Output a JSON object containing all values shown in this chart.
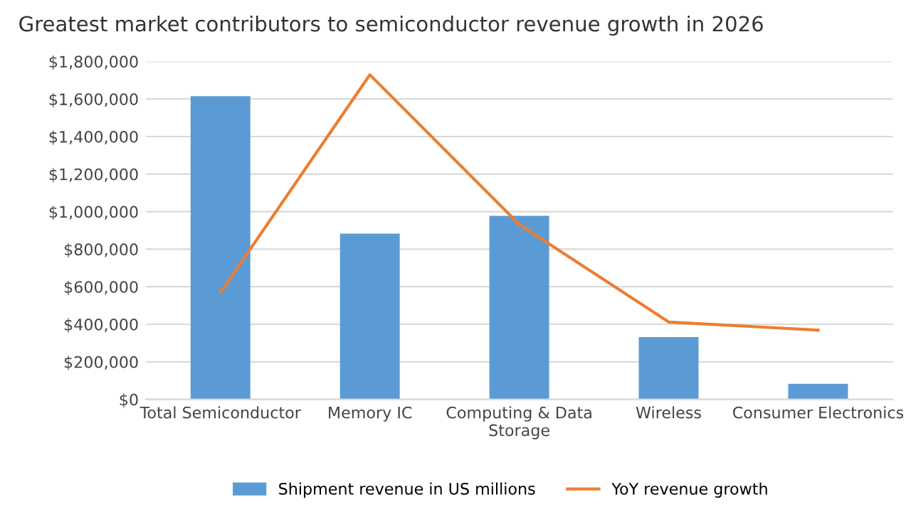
{
  "chart_data": {
    "type": "bar",
    "title": "Greatest market contributors to semiconductor revenue growth in 2026",
    "categories": [
      "Total Semiconductor",
      "Memory IC",
      "Computing & Data\nStorage",
      "Wireless",
      "Consumer Electronics"
    ],
    "series": [
      {
        "name": "Shipment revenue in US millions",
        "color": "#5b9bd5",
        "values": [
          1615000,
          883000,
          978000,
          332000,
          83000
        ]
      },
      {
        "name": "YoY revenue growth",
        "type": "line",
        "color": "#ed7d31",
        "values": [
          569000,
          1729000,
          932000,
          412000,
          369000
        ]
      }
    ],
    "ylim": [
      0,
      1800000
    ],
    "yticks": [
      {
        "value": 0,
        "label": "$0"
      },
      {
        "value": 200000,
        "label": "$200,000"
      },
      {
        "value": 400000,
        "label": "$400,000"
      },
      {
        "value": 600000,
        "label": "$600,000"
      },
      {
        "value": 800000,
        "label": "$800,000"
      },
      {
        "value": 1000000,
        "label": "$1,000,000"
      },
      {
        "value": 1200000,
        "label": "$1,200,000"
      },
      {
        "value": 1400000,
        "label": "$1,400,000"
      },
      {
        "value": 1600000,
        "label": "$1,600,000"
      },
      {
        "value": 1800000,
        "label": "$1,800,000"
      }
    ],
    "grid": "y",
    "legend": "bottom",
    "marker": "none"
  }
}
